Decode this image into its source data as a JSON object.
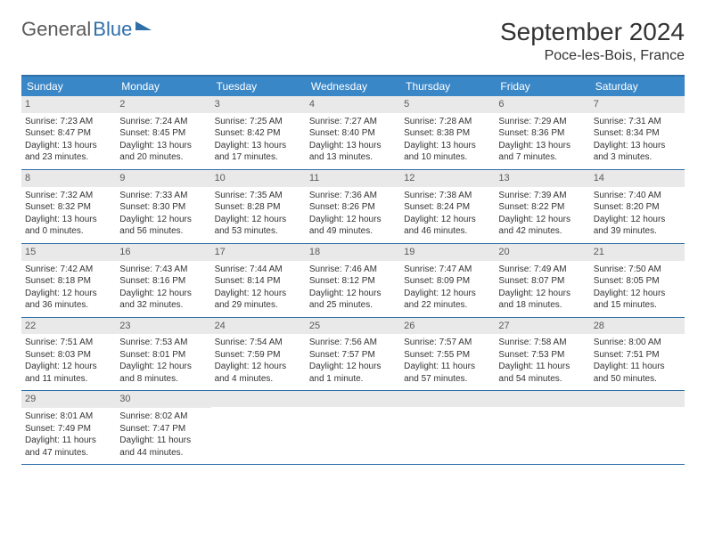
{
  "logo": {
    "part1": "General",
    "part2": "Blue"
  },
  "title": "September 2024",
  "location": "Poce-les-Bois, France",
  "colors": {
    "header_bg": "#3a87c8",
    "rule": "#2f6fa8",
    "daynum_bg": "#e9e9e9",
    "text": "#333333",
    "logo_gray": "#5a5a5a",
    "logo_blue": "#2f6fa8",
    "page_bg": "#ffffff"
  },
  "typography": {
    "title_fontsize": 28,
    "location_fontsize": 16,
    "weekday_fontsize": 12,
    "body_fontsize": 10
  },
  "weekdays": [
    "Sunday",
    "Monday",
    "Tuesday",
    "Wednesday",
    "Thursday",
    "Friday",
    "Saturday"
  ],
  "weeks": [
    [
      {
        "n": "1",
        "sr": "Sunrise: 7:23 AM",
        "ss": "Sunset: 8:47 PM",
        "dl": "Daylight: 13 hours and 23 minutes."
      },
      {
        "n": "2",
        "sr": "Sunrise: 7:24 AM",
        "ss": "Sunset: 8:45 PM",
        "dl": "Daylight: 13 hours and 20 minutes."
      },
      {
        "n": "3",
        "sr": "Sunrise: 7:25 AM",
        "ss": "Sunset: 8:42 PM",
        "dl": "Daylight: 13 hours and 17 minutes."
      },
      {
        "n": "4",
        "sr": "Sunrise: 7:27 AM",
        "ss": "Sunset: 8:40 PM",
        "dl": "Daylight: 13 hours and 13 minutes."
      },
      {
        "n": "5",
        "sr": "Sunrise: 7:28 AM",
        "ss": "Sunset: 8:38 PM",
        "dl": "Daylight: 13 hours and 10 minutes."
      },
      {
        "n": "6",
        "sr": "Sunrise: 7:29 AM",
        "ss": "Sunset: 8:36 PM",
        "dl": "Daylight: 13 hours and 7 minutes."
      },
      {
        "n": "7",
        "sr": "Sunrise: 7:31 AM",
        "ss": "Sunset: 8:34 PM",
        "dl": "Daylight: 13 hours and 3 minutes."
      }
    ],
    [
      {
        "n": "8",
        "sr": "Sunrise: 7:32 AM",
        "ss": "Sunset: 8:32 PM",
        "dl": "Daylight: 13 hours and 0 minutes."
      },
      {
        "n": "9",
        "sr": "Sunrise: 7:33 AM",
        "ss": "Sunset: 8:30 PM",
        "dl": "Daylight: 12 hours and 56 minutes."
      },
      {
        "n": "10",
        "sr": "Sunrise: 7:35 AM",
        "ss": "Sunset: 8:28 PM",
        "dl": "Daylight: 12 hours and 53 minutes."
      },
      {
        "n": "11",
        "sr": "Sunrise: 7:36 AM",
        "ss": "Sunset: 8:26 PM",
        "dl": "Daylight: 12 hours and 49 minutes."
      },
      {
        "n": "12",
        "sr": "Sunrise: 7:38 AM",
        "ss": "Sunset: 8:24 PM",
        "dl": "Daylight: 12 hours and 46 minutes."
      },
      {
        "n": "13",
        "sr": "Sunrise: 7:39 AM",
        "ss": "Sunset: 8:22 PM",
        "dl": "Daylight: 12 hours and 42 minutes."
      },
      {
        "n": "14",
        "sr": "Sunrise: 7:40 AM",
        "ss": "Sunset: 8:20 PM",
        "dl": "Daylight: 12 hours and 39 minutes."
      }
    ],
    [
      {
        "n": "15",
        "sr": "Sunrise: 7:42 AM",
        "ss": "Sunset: 8:18 PM",
        "dl": "Daylight: 12 hours and 36 minutes."
      },
      {
        "n": "16",
        "sr": "Sunrise: 7:43 AM",
        "ss": "Sunset: 8:16 PM",
        "dl": "Daylight: 12 hours and 32 minutes."
      },
      {
        "n": "17",
        "sr": "Sunrise: 7:44 AM",
        "ss": "Sunset: 8:14 PM",
        "dl": "Daylight: 12 hours and 29 minutes."
      },
      {
        "n": "18",
        "sr": "Sunrise: 7:46 AM",
        "ss": "Sunset: 8:12 PM",
        "dl": "Daylight: 12 hours and 25 minutes."
      },
      {
        "n": "19",
        "sr": "Sunrise: 7:47 AM",
        "ss": "Sunset: 8:09 PM",
        "dl": "Daylight: 12 hours and 22 minutes."
      },
      {
        "n": "20",
        "sr": "Sunrise: 7:49 AM",
        "ss": "Sunset: 8:07 PM",
        "dl": "Daylight: 12 hours and 18 minutes."
      },
      {
        "n": "21",
        "sr": "Sunrise: 7:50 AM",
        "ss": "Sunset: 8:05 PM",
        "dl": "Daylight: 12 hours and 15 minutes."
      }
    ],
    [
      {
        "n": "22",
        "sr": "Sunrise: 7:51 AM",
        "ss": "Sunset: 8:03 PM",
        "dl": "Daylight: 12 hours and 11 minutes."
      },
      {
        "n": "23",
        "sr": "Sunrise: 7:53 AM",
        "ss": "Sunset: 8:01 PM",
        "dl": "Daylight: 12 hours and 8 minutes."
      },
      {
        "n": "24",
        "sr": "Sunrise: 7:54 AM",
        "ss": "Sunset: 7:59 PM",
        "dl": "Daylight: 12 hours and 4 minutes."
      },
      {
        "n": "25",
        "sr": "Sunrise: 7:56 AM",
        "ss": "Sunset: 7:57 PM",
        "dl": "Daylight: 12 hours and 1 minute."
      },
      {
        "n": "26",
        "sr": "Sunrise: 7:57 AM",
        "ss": "Sunset: 7:55 PM",
        "dl": "Daylight: 11 hours and 57 minutes."
      },
      {
        "n": "27",
        "sr": "Sunrise: 7:58 AM",
        "ss": "Sunset: 7:53 PM",
        "dl": "Daylight: 11 hours and 54 minutes."
      },
      {
        "n": "28",
        "sr": "Sunrise: 8:00 AM",
        "ss": "Sunset: 7:51 PM",
        "dl": "Daylight: 11 hours and 50 minutes."
      }
    ],
    [
      {
        "n": "29",
        "sr": "Sunrise: 8:01 AM",
        "ss": "Sunset: 7:49 PM",
        "dl": "Daylight: 11 hours and 47 minutes."
      },
      {
        "n": "30",
        "sr": "Sunrise: 8:02 AM",
        "ss": "Sunset: 7:47 PM",
        "dl": "Daylight: 11 hours and 44 minutes."
      },
      {
        "empty": true
      },
      {
        "empty": true
      },
      {
        "empty": true
      },
      {
        "empty": true
      },
      {
        "empty": true
      }
    ]
  ]
}
